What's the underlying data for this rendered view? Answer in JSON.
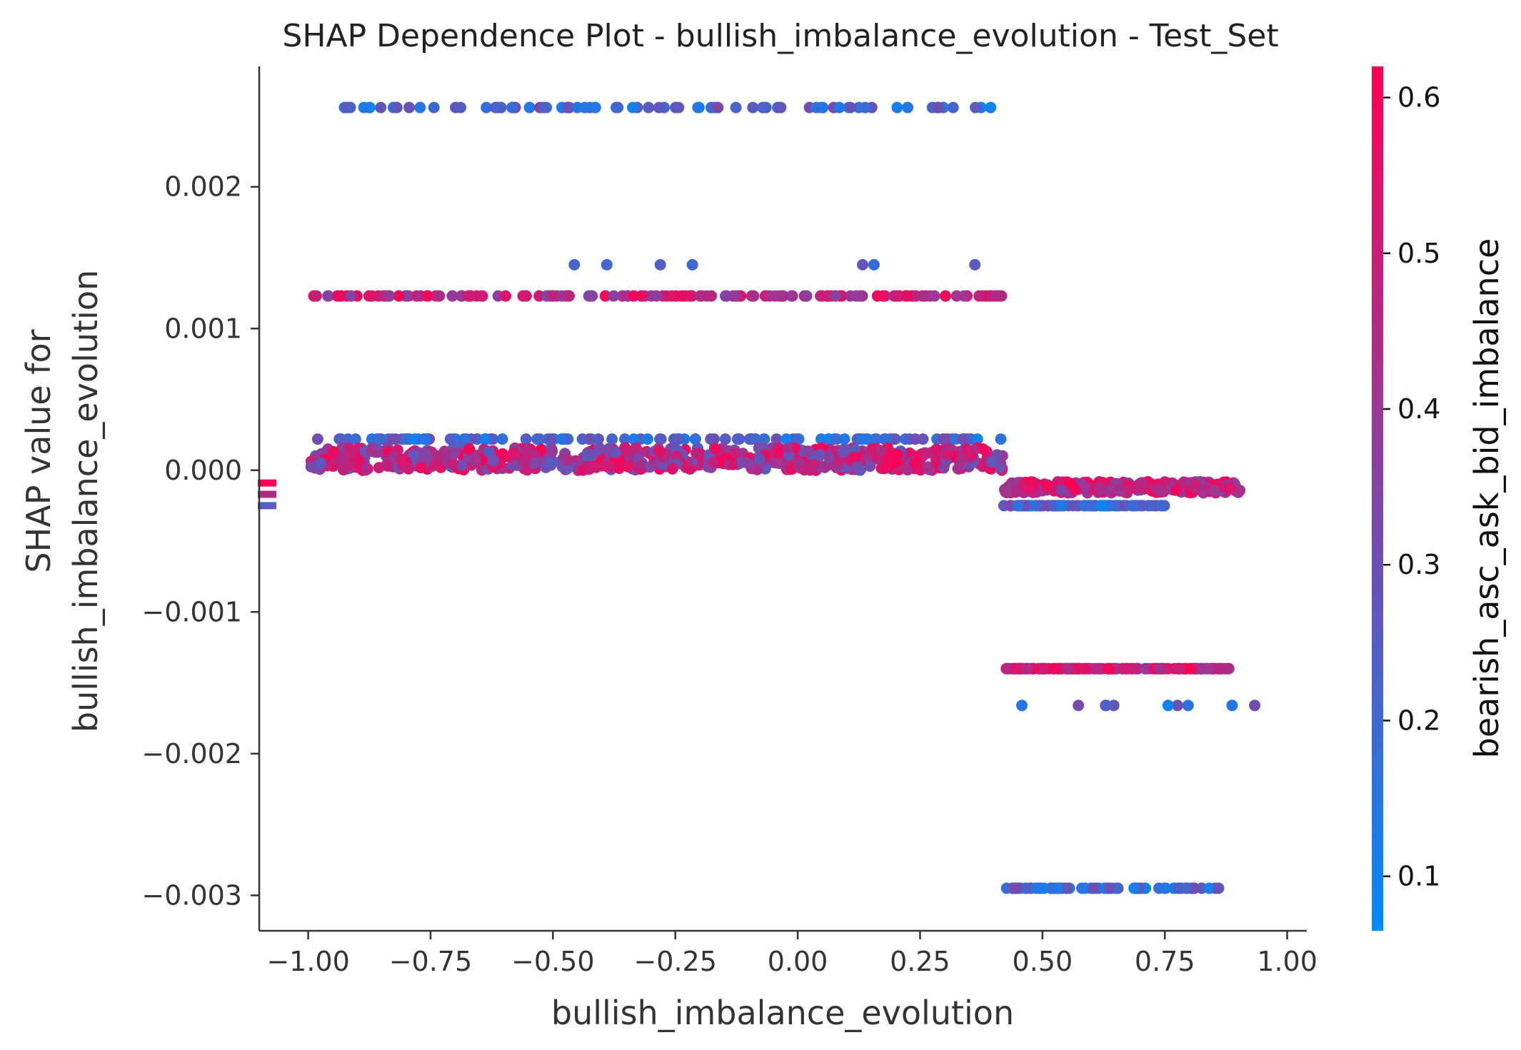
{
  "chart_data": {
    "type": "scatter",
    "title": "SHAP Dependence Plot - bullish_imbalance_evolution - Test_Set",
    "xlabel": "bullish_imbalance_evolution",
    "ylabel_lines": [
      "SHAP value for",
      "bullish_imbalance_evolution"
    ],
    "colorbar_label": "bearish_asc_ask_bid_imbalance",
    "xlim": [
      -1.1,
      1.04
    ],
    "ylim": [
      -0.00325,
      0.00285
    ],
    "x_ticks": [
      -1.0,
      -0.75,
      -0.5,
      -0.25,
      0.0,
      0.25,
      0.5,
      0.75,
      1.0
    ],
    "x_tick_labels": [
      "−1.00",
      "−0.75",
      "−0.50",
      "−0.25",
      "0.00",
      "0.25",
      "0.50",
      "0.75",
      "1.00"
    ],
    "y_ticks": [
      -0.003,
      -0.002,
      -0.001,
      0.0,
      0.001,
      0.002
    ],
    "y_tick_labels": [
      "−0.003",
      "−0.002",
      "−0.001",
      "0.000",
      "0.001",
      "0.002"
    ],
    "color_range": [
      0.065,
      0.62
    ],
    "colorbar_ticks": [
      0.1,
      0.2,
      0.3,
      0.4,
      0.5,
      0.6
    ],
    "colorbar_tick_labels": [
      "0.1",
      "0.2",
      "0.3",
      "0.4",
      "0.5",
      "0.6"
    ],
    "colormap": [
      "#008afb",
      "#ff0052"
    ],
    "grid": false,
    "nan_markers": [
      {
        "y": -9e-05,
        "c": 0.6
      },
      {
        "y": -0.00017,
        "c": 0.45
      },
      {
        "y": -0.00025,
        "c": 0.25
      }
    ],
    "bands": [
      {
        "y": 0.00256,
        "jitter": 0.0,
        "x_from": -0.97,
        "x_to": 0.42,
        "n": 75,
        "c_from": 0.1,
        "c_to": 0.36,
        "seed": 11
      },
      {
        "y": 0.00145,
        "jitter": 0.0,
        "x_from": -0.5,
        "x_to": 0.41,
        "n": 7,
        "c_from": 0.15,
        "c_to": 0.35,
        "seed": 13
      },
      {
        "y": 0.00123,
        "jitter": 0.0,
        "x_from": -1.0,
        "x_to": 0.42,
        "n": 150,
        "c_from": 0.35,
        "c_to": 0.6,
        "seed": 17
      },
      {
        "y": 0.00022,
        "jitter": 0.0,
        "x_from": -1.0,
        "x_to": 0.42,
        "n": 120,
        "c_from": 0.1,
        "c_to": 0.33,
        "seed": 19
      },
      {
        "y": 8e-05,
        "jitter": 8e-05,
        "x_from": -1.0,
        "x_to": 0.42,
        "n": 650,
        "c_from": 0.25,
        "c_to": 0.62,
        "seed": 23
      },
      {
        "y": -0.00012,
        "jitter": 4e-05,
        "x_from": 0.42,
        "x_to": 0.91,
        "n": 260,
        "c_from": 0.35,
        "c_to": 0.62,
        "seed": 29
      },
      {
        "y": -0.00025,
        "jitter": 0.0,
        "x_from": 0.42,
        "x_to": 0.75,
        "n": 100,
        "c_from": 0.1,
        "c_to": 0.33,
        "seed": 31
      },
      {
        "y": -0.0014,
        "jitter": 0.0,
        "x_from": 0.42,
        "x_to": 0.89,
        "n": 160,
        "c_from": 0.38,
        "c_to": 0.62,
        "seed": 37
      },
      {
        "y": -0.00166,
        "jitter": 0.0,
        "x_from": 0.45,
        "x_to": 0.94,
        "n": 10,
        "c_from": 0.1,
        "c_to": 0.32,
        "seed": 41
      },
      {
        "y": -0.00295,
        "jitter": 0.0,
        "x_from": 0.42,
        "x_to": 0.86,
        "n": 70,
        "c_from": 0.1,
        "c_to": 0.33,
        "seed": 43
      }
    ]
  }
}
